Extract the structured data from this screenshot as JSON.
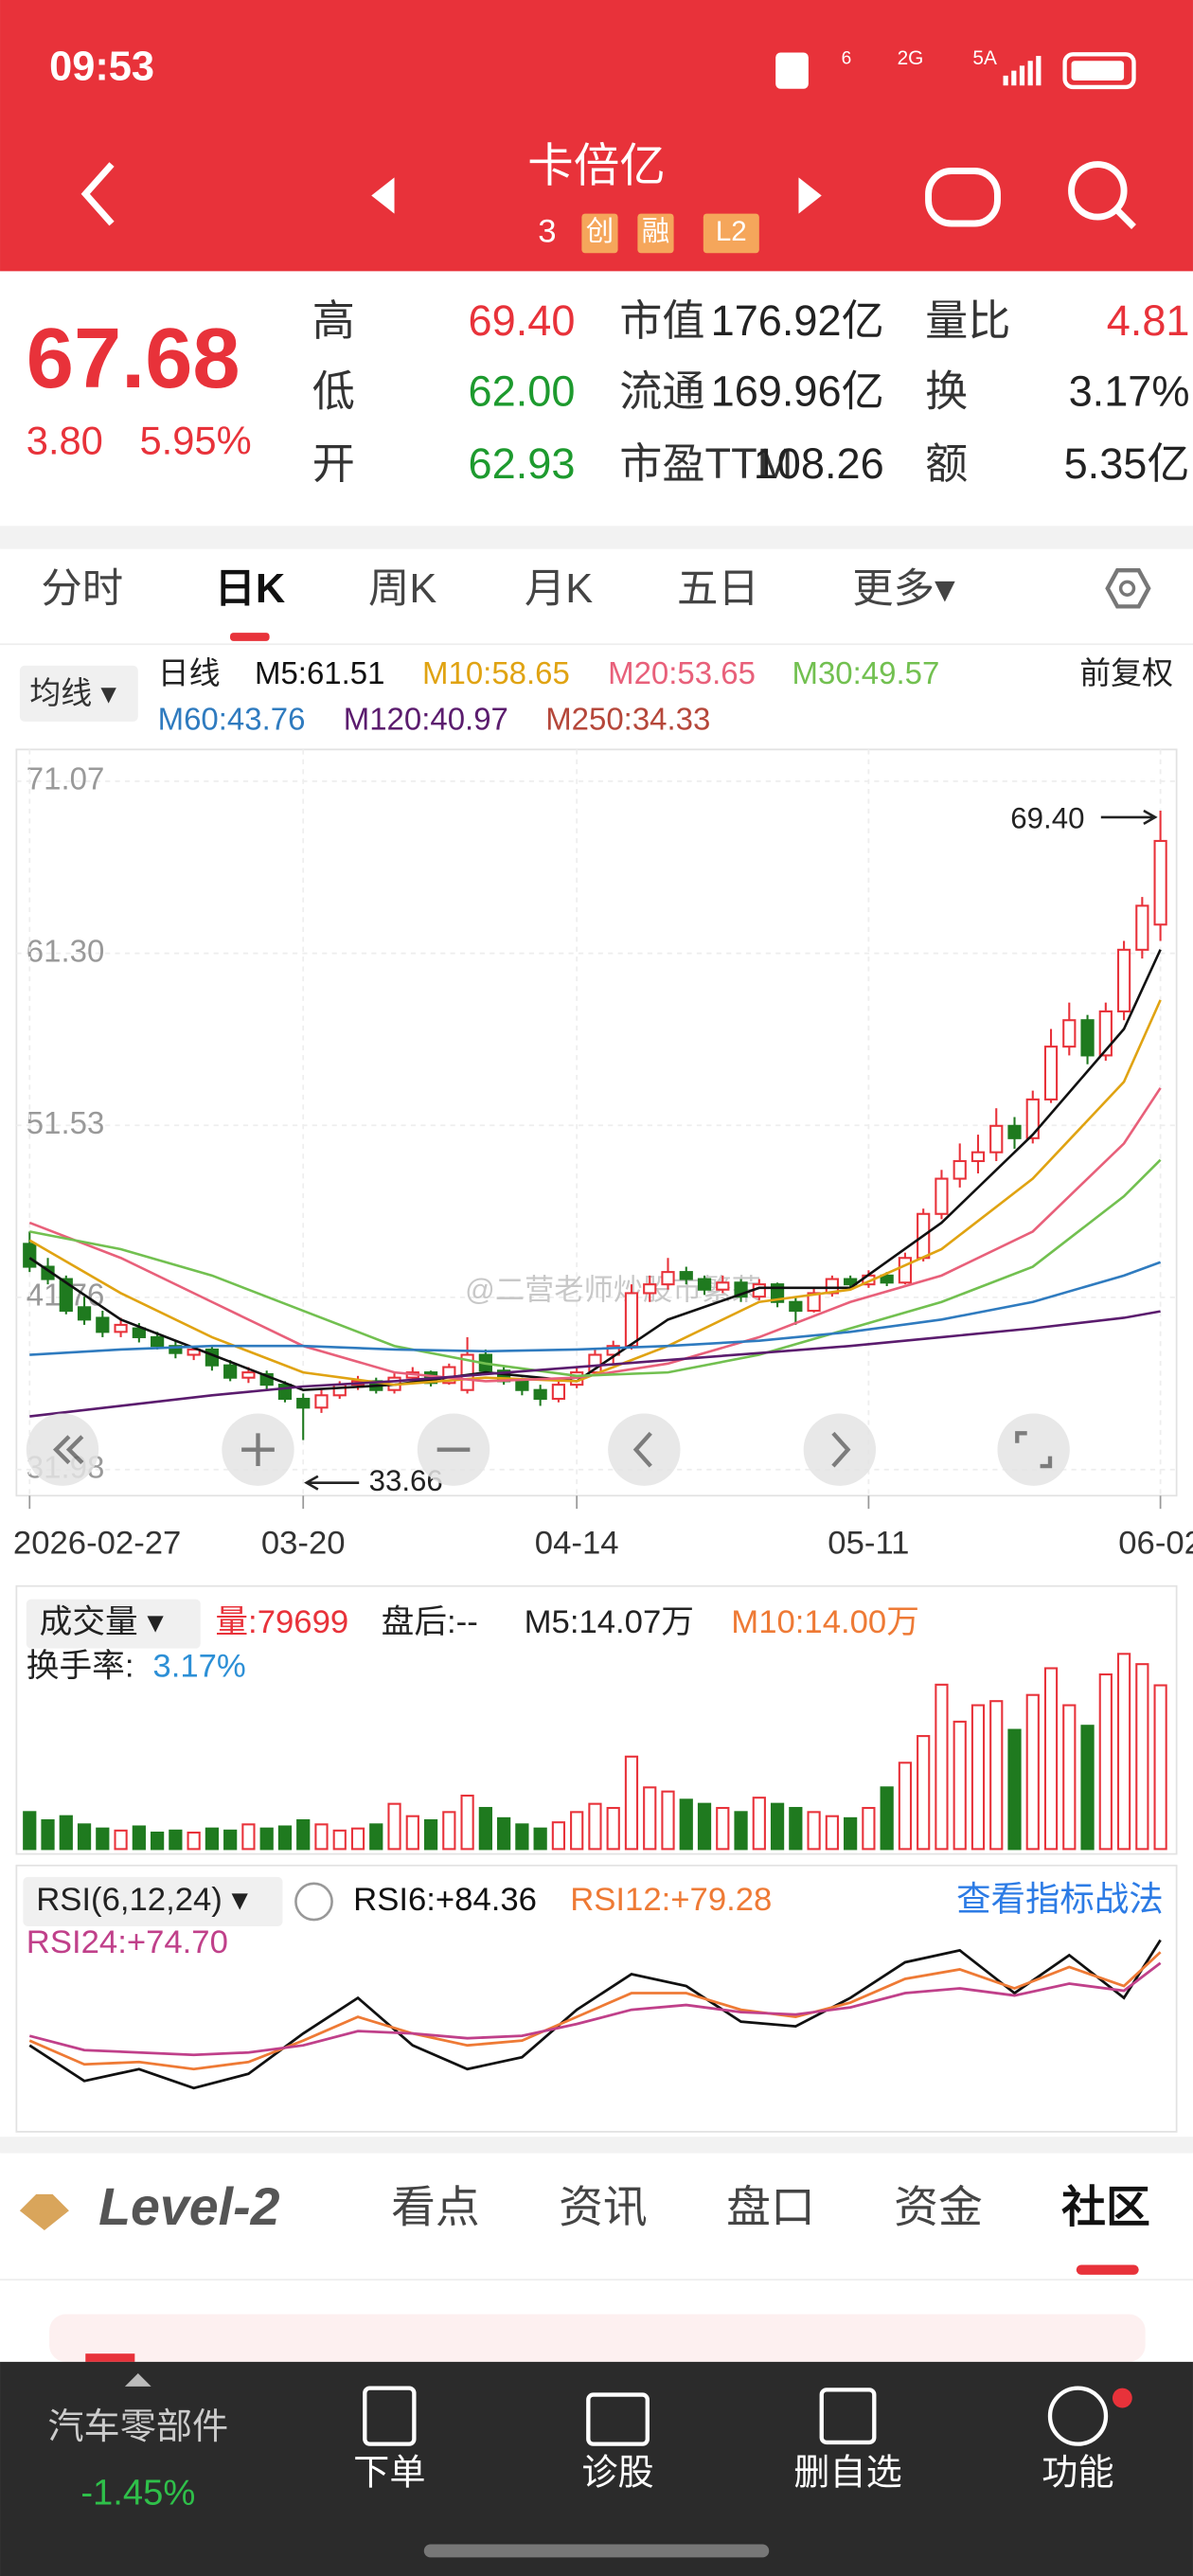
{
  "status_bar": {
    "time": "09:53",
    "signals": [
      "6",
      "2G",
      "5A"
    ]
  },
  "header": {
    "title": "卡倍亿",
    "code": "3",
    "tags": [
      "创",
      "融",
      "L2"
    ]
  },
  "quote": {
    "price": "67.68",
    "change": "3.80",
    "change_pct": "5.95%",
    "stats": [
      {
        "label": "高",
        "value": "69.40",
        "color": "#e8323a"
      },
      {
        "label": "市值",
        "value": "176.92亿",
        "color": "#222222"
      },
      {
        "label": "量比",
        "value": "4.81",
        "color": "#e8323a"
      },
      {
        "label": "低",
        "value": "62.00",
        "color": "#1d9a2e"
      },
      {
        "label": "流通",
        "value": "169.96亿",
        "color": "#222222"
      },
      {
        "label": "换",
        "value": "3.17%",
        "color": "#222222"
      },
      {
        "label": "开",
        "value": "62.93",
        "color": "#1d9a2e"
      },
      {
        "label": "市盈TTM",
        "value": "108.26",
        "color": "#222222"
      },
      {
        "label": "额",
        "value": "5.35亿",
        "color": "#222222"
      }
    ]
  },
  "tabs": {
    "items": [
      "分时",
      "日K",
      "周K",
      "月K",
      "五日",
      "更多▾"
    ],
    "active": 1
  },
  "ma_legend": {
    "selector": "均线 ▾",
    "period": "日线",
    "adjust": "前复权"
  },
  "price_chart": {
    "type": "candlestick",
    "ylim": [
      30.5,
      72.5
    ],
    "yticks": [
      71.07,
      {
        "value": 61.3,
        "label": "61.30"
      },
      51.53,
      41.76,
      31.98
    ],
    "grid": true,
    "up_color": "#e8323a",
    "down_color": "#1f7a1f",
    "xticks": [
      {
        "index": 0,
        "label": "2026-02-27"
      },
      {
        "index": 15,
        "label": "03-20"
      },
      {
        "index": 30,
        "label": "04-14"
      },
      {
        "index": 46,
        "label": "05-11"
      },
      {
        "index": 62,
        "label": "06-02"
      }
    ],
    "high_mark": {
      "index": 62,
      "label": "69.40"
    },
    "low_mark": {
      "index": 15,
      "label": "33.66"
    },
    "watermark": "@二营老师炒股市繁荣",
    "candles": [
      [
        44.8,
        45.5,
        43.2,
        43.5
      ],
      [
        43.5,
        44.0,
        42.5,
        42.8
      ],
      [
        42.8,
        43.0,
        40.8,
        41.0
      ],
      [
        41.2,
        41.8,
        40.2,
        40.5
      ],
      [
        40.6,
        41.0,
        39.5,
        39.8
      ],
      [
        39.8,
        40.6,
        39.5,
        40.2
      ],
      [
        40.0,
        40.3,
        39.2,
        39.5
      ],
      [
        39.5,
        39.8,
        38.8,
        39.0
      ],
      [
        39.0,
        39.3,
        38.3,
        38.6
      ],
      [
        38.5,
        39.0,
        38.2,
        38.8
      ],
      [
        38.8,
        39.0,
        37.6,
        37.9
      ],
      [
        37.9,
        38.2,
        37.0,
        37.2
      ],
      [
        37.2,
        37.8,
        36.9,
        37.5
      ],
      [
        37.4,
        37.6,
        36.5,
        36.8
      ],
      [
        36.8,
        37.0,
        35.8,
        36.0
      ],
      [
        36.0,
        36.3,
        33.66,
        35.5
      ],
      [
        35.5,
        36.5,
        35.2,
        36.2
      ],
      [
        36.2,
        37.0,
        36.0,
        36.8
      ],
      [
        36.8,
        37.3,
        36.5,
        37.0
      ],
      [
        37.0,
        37.2,
        36.3,
        36.5
      ],
      [
        36.5,
        37.5,
        36.3,
        37.2
      ],
      [
        37.2,
        37.8,
        37.0,
        37.5
      ],
      [
        37.5,
        37.6,
        36.7,
        36.9
      ],
      [
        36.9,
        38.0,
        36.8,
        37.8
      ],
      [
        36.5,
        39.5,
        36.3,
        38.5
      ],
      [
        38.5,
        38.8,
        37.4,
        37.6
      ],
      [
        37.6,
        37.8,
        36.8,
        37.0
      ],
      [
        37.0,
        37.2,
        36.2,
        36.5
      ],
      [
        36.5,
        36.8,
        35.6,
        36.0
      ],
      [
        36.0,
        37.0,
        35.8,
        36.8
      ],
      [
        36.8,
        37.8,
        36.6,
        37.5
      ],
      [
        37.5,
        38.8,
        37.3,
        38.5
      ],
      [
        38.5,
        39.3,
        38.0,
        39.0
      ],
      [
        39.0,
        42.5,
        38.8,
        42.0
      ],
      [
        42.0,
        43.0,
        41.5,
        42.5
      ],
      [
        42.5,
        44.0,
        42.2,
        43.2
      ],
      [
        43.2,
        43.5,
        42.5,
        42.8
      ],
      [
        42.8,
        43.0,
        41.9,
        42.2
      ],
      [
        42.2,
        43.0,
        42.0,
        42.6
      ],
      [
        42.6,
        42.8,
        41.5,
        41.8
      ],
      [
        41.8,
        42.8,
        41.6,
        42.5
      ],
      [
        42.5,
        42.6,
        41.2,
        41.5
      ],
      [
        41.5,
        41.8,
        40.2,
        41.0
      ],
      [
        41.0,
        42.3,
        40.9,
        42.0
      ],
      [
        42.0,
        43.0,
        41.8,
        42.8
      ],
      [
        42.8,
        43.0,
        42.2,
        42.5
      ],
      [
        42.5,
        43.3,
        42.3,
        43.0
      ],
      [
        43.0,
        43.2,
        42.4,
        42.6
      ],
      [
        42.6,
        44.3,
        42.5,
        44.0
      ],
      [
        44.0,
        46.8,
        43.8,
        46.5
      ],
      [
        46.5,
        49.0,
        46.2,
        48.5
      ],
      [
        48.5,
        50.5,
        48.0,
        49.5
      ],
      [
        49.5,
        51.0,
        48.8,
        50.0
      ],
      [
        50.0,
        52.5,
        49.5,
        51.5
      ],
      [
        51.5,
        52.0,
        50.2,
        50.8
      ],
      [
        50.8,
        53.5,
        50.5,
        53.0
      ],
      [
        53.0,
        57.0,
        52.8,
        56.0
      ],
      [
        56.0,
        58.5,
        55.5,
        57.5
      ],
      [
        57.5,
        57.8,
        55.0,
        55.5
      ],
      [
        55.5,
        58.5,
        55.2,
        58.0
      ],
      [
        58.0,
        62.0,
        57.5,
        61.5
      ],
      [
        61.5,
        64.5,
        61.0,
        64.0
      ],
      [
        62.93,
        69.4,
        62.0,
        67.68
      ]
    ],
    "ma_x": [
      0,
      5,
      10,
      15,
      20,
      25,
      30,
      35,
      40,
      45,
      50,
      55,
      60,
      62
    ],
    "ma_lines": [
      {
        "label": "M5:61.51",
        "color": "#111111",
        "values": [
          44,
          40.5,
          38.5,
          36.5,
          36.8,
          37.5,
          37,
          40.5,
          42.3,
          42.3,
          46,
          51,
          57,
          61.51
        ]
      },
      {
        "label": "M10:58.65",
        "color": "#e0a312",
        "values": [
          45,
          42,
          39.5,
          37.5,
          36.8,
          37.2,
          37,
          39,
          41.5,
          42.2,
          44.5,
          48.5,
          54,
          58.65
        ]
      },
      {
        "label": "M20:53.65",
        "color": "#e8607a",
        "values": [
          46,
          44,
          41.5,
          39,
          37.5,
          37,
          37.2,
          38,
          39.5,
          41.5,
          43,
          45.5,
          50.5,
          53.65
        ]
      },
      {
        "label": "M30:49.57",
        "color": "#72c050",
        "values": [
          45.5,
          44.5,
          43,
          41,
          39,
          38,
          37.3,
          37.5,
          38.5,
          40,
          41.5,
          43.5,
          47.5,
          49.57
        ]
      },
      {
        "label": "M60:43.76",
        "color": "#2f7bbf",
        "values": [
          38.5,
          38.8,
          39,
          39,
          38.8,
          38.7,
          38.8,
          39,
          39.3,
          39.8,
          40.5,
          41.5,
          43,
          43.76
        ]
      },
      {
        "label": "M120:40.97",
        "color": "#5b1c6e",
        "values": [
          35,
          35.6,
          36.2,
          36.7,
          37,
          37.4,
          37.8,
          38.2,
          38.6,
          39,
          39.5,
          40,
          40.6,
          40.97
        ]
      },
      {
        "label": "M250:34.33",
        "color": "#b5473a"
      }
    ]
  },
  "volume_chart": {
    "type": "bar",
    "selector": "成交量 ▾",
    "volume": "量:79699",
    "after_hours": "盘后:--",
    "ma5": "M5:14.07万",
    "ma10": "M10:14.00万",
    "turnover_label": "换手率:",
    "turnover": "3.17%",
    "ylim": [
      0,
      100000
    ],
    "values": [
      18000,
      14000,
      16000,
      12000,
      10000,
      9000,
      11000,
      8000,
      9000,
      8000,
      10000,
      9000,
      12000,
      10000,
      11000,
      14000,
      12000,
      9000,
      10000,
      12000,
      22000,
      16000,
      14000,
      18000,
      26000,
      20000,
      15000,
      12000,
      10000,
      13000,
      18000,
      22000,
      20000,
      45000,
      30000,
      28000,
      24000,
      22000,
      20000,
      18000,
      25000,
      22000,
      20000,
      18000,
      16000,
      15000,
      20000,
      30000,
      42000,
      55000,
      80000,
      62000,
      70000,
      72000,
      58000,
      75000,
      88000,
      70000,
      60000,
      85000,
      95000,
      90000,
      79699
    ]
  },
  "rsi_chart": {
    "type": "line",
    "selector": "RSI(6,12,24) ▾",
    "link": "查看指标战法",
    "ylim": [
      5,
      95
    ],
    "x": [
      0,
      3,
      6,
      9,
      12,
      15,
      18,
      21,
      24,
      27,
      30,
      33,
      36,
      39,
      42,
      45,
      48,
      51,
      54,
      57,
      60,
      62
    ],
    "series": [
      {
        "name": "RSI6:+84.36",
        "color": "#111111",
        "values": [
          40,
          25,
          30,
          22,
          28,
          45,
          60,
          40,
          30,
          35,
          55,
          70,
          65,
          50,
          48,
          60,
          75,
          80,
          62,
          78,
          60,
          84.36
        ]
      },
      {
        "name": "RSI12:+79.28",
        "color": "#ee7a35",
        "values": [
          42,
          32,
          33,
          30,
          33,
          42,
          52,
          45,
          40,
          42,
          52,
          62,
          62,
          55,
          52,
          58,
          68,
          72,
          64,
          73,
          65,
          79.28
        ]
      },
      {
        "name": "RSI24:+74.70",
        "color": "#c0408a",
        "values": [
          44,
          38,
          37,
          36,
          37,
          40,
          46,
          45,
          43,
          44,
          49,
          55,
          57,
          54,
          53,
          56,
          62,
          64,
          61,
          66,
          63,
          74.7
        ]
      }
    ]
  },
  "bottom_tabs": {
    "brand": "Level-2",
    "items": [
      "看点",
      "资讯",
      "盘口",
      "资金",
      "社区"
    ],
    "active": 4
  },
  "nav": {
    "sector": "汽车零部件",
    "sector_change": "-1.45%",
    "items": [
      "下单",
      "诊股",
      "删自选",
      "功能"
    ]
  }
}
